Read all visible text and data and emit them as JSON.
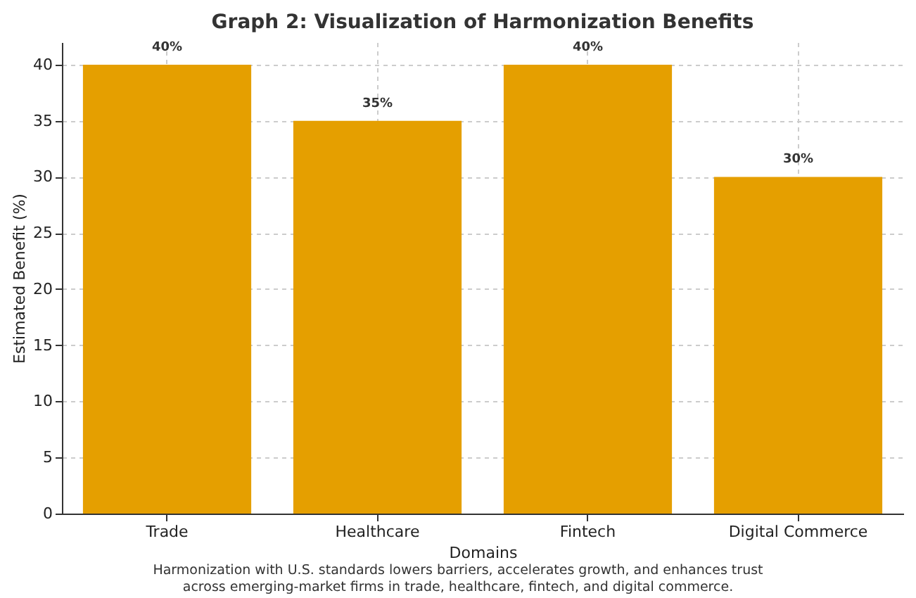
{
  "chart_data": {
    "type": "bar",
    "title": "Graph 2: Visualization of Harmonization Benefits",
    "xlabel": "Domains",
    "ylabel": "Estimated Benefit (%)",
    "categories": [
      "Trade",
      "Healthcare",
      "Fintech",
      "Digital Commerce"
    ],
    "values": [
      40,
      35,
      40,
      30
    ],
    "color": "#e59f00",
    "value_labels": [
      "40%",
      "35%",
      "40%",
      "30%"
    ],
    "ylim": [
      0,
      42
    ],
    "yticks": [
      0,
      5,
      10,
      15,
      20,
      25,
      30,
      35,
      40
    ],
    "grid": true,
    "annotations": [
      "Harmonization with U.S. standards lowers barriers, accelerates growth, and enhances trust",
      "across emerging-market firms in trade, healthcare, fintech, and digital commerce."
    ]
  }
}
